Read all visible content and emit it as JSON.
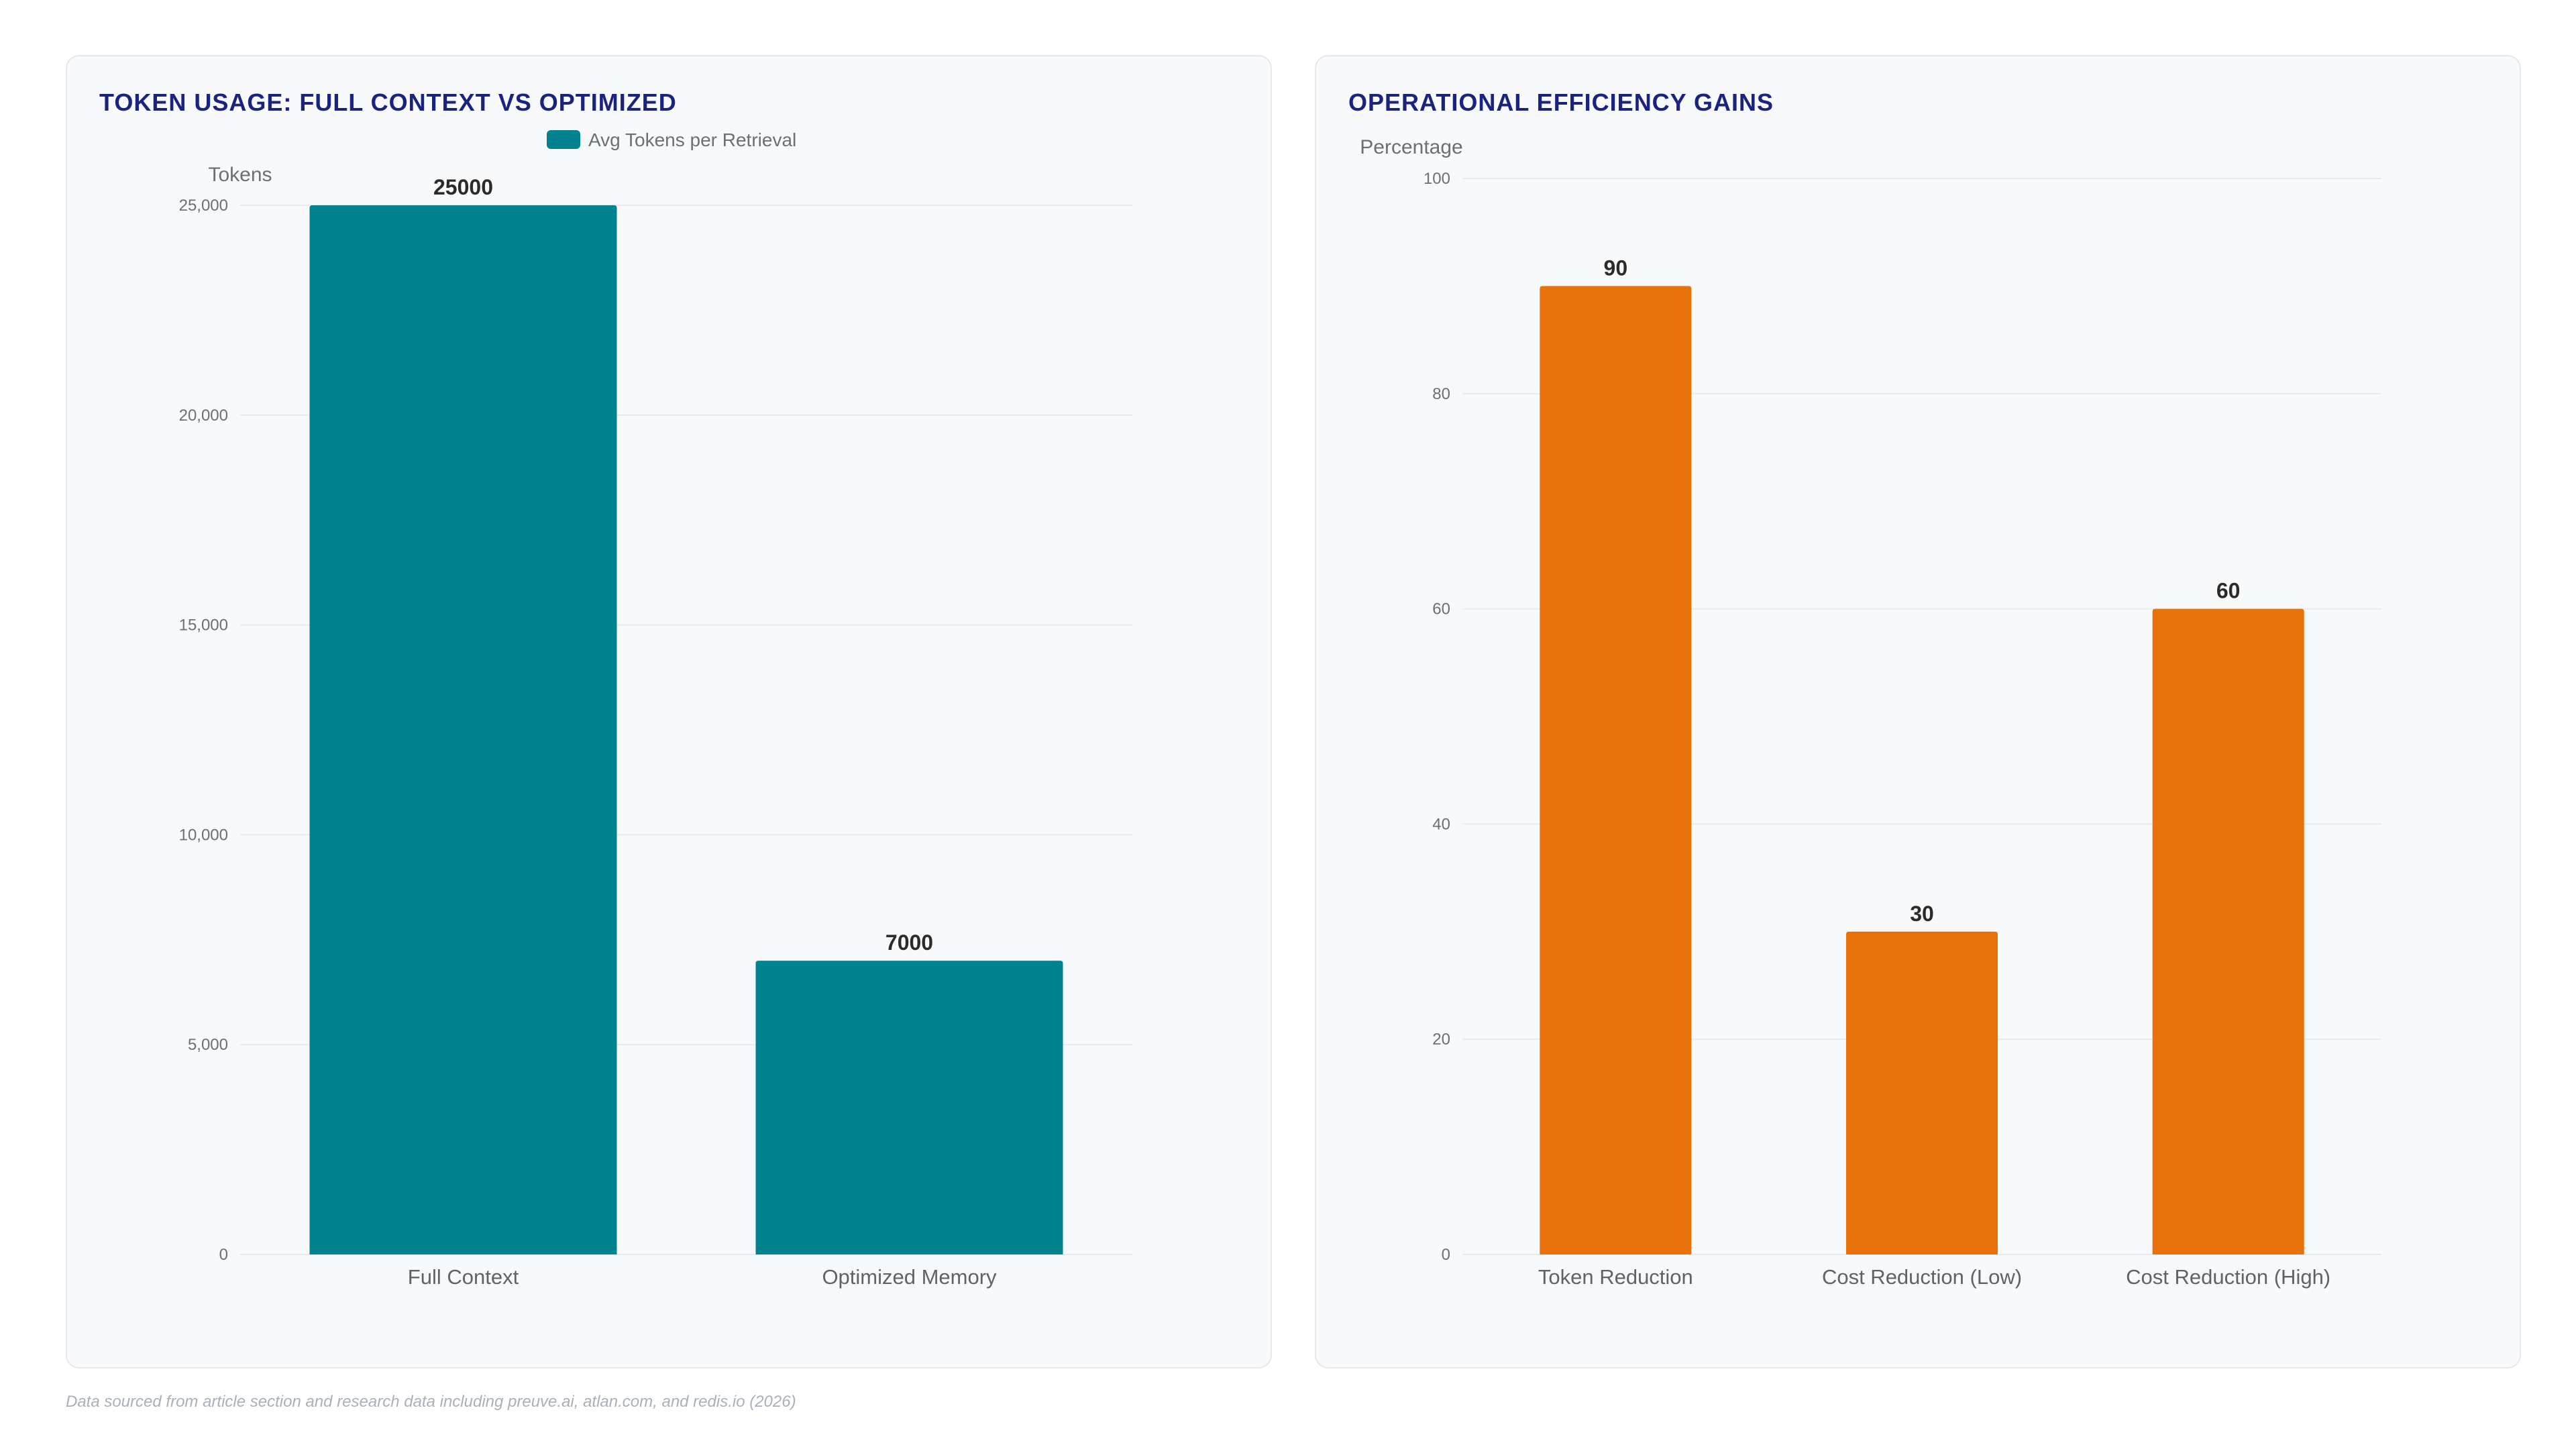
{
  "charts": [
    {
      "title": "TOKEN USAGE: FULL CONTEXT VS OPTIMIZED"
    },
    {
      "title": "OPERATIONAL EFFICIENCY GAINS"
    }
  ],
  "footnote": "Data sourced from article section and research data including preuve.ai, atlan.com, and redis.io (2026)",
  "chart_data": [
    {
      "type": "bar",
      "title": "TOKEN USAGE: FULL CONTEXT VS OPTIMIZED",
      "xlabel": "",
      "ylabel": "Tokens",
      "categories": [
        "Full Context",
        "Optimized Memory"
      ],
      "series": [
        {
          "name": "Avg Tokens per Retrieval",
          "values": [
            25000,
            7000
          ],
          "color": "#00838f"
        }
      ],
      "ylim": [
        0,
        25000
      ],
      "yticks": [
        0,
        5000,
        10000,
        15000,
        20000,
        25000
      ],
      "ytick_labels": [
        "0",
        "5,000",
        "10,000",
        "15,000",
        "20,000",
        "25,000"
      ],
      "grid": true,
      "legend": "top-center",
      "data_labels": true
    },
    {
      "type": "bar",
      "title": "OPERATIONAL EFFICIENCY GAINS",
      "xlabel": "",
      "ylabel": "Percentage",
      "categories": [
        "Token Reduction",
        "Cost Reduction (Low)",
        "Cost Reduction (High)"
      ],
      "series": [
        {
          "values": [
            90,
            30,
            60
          ],
          "color": "#e8710a"
        }
      ],
      "ylim": [
        0,
        100
      ],
      "yticks": [
        0,
        20,
        40,
        60,
        80,
        100
      ],
      "ytick_labels": [
        "0",
        "20",
        "40",
        "60",
        "80",
        "100"
      ],
      "grid": true,
      "legend": "none",
      "data_labels": true
    }
  ],
  "colors": {
    "title": "#1a237e",
    "teal": "#00838f",
    "orange": "#e8710a"
  }
}
